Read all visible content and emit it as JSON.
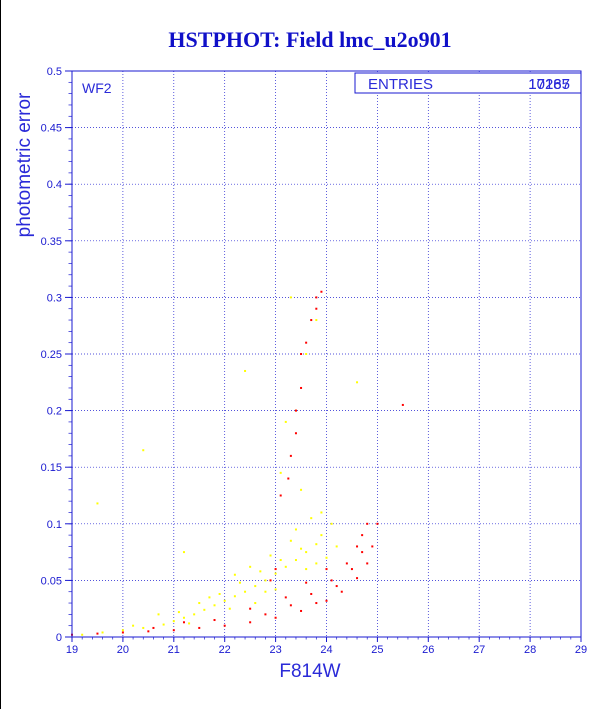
{
  "chart_data": {
    "type": "scatter",
    "title": "HSTPHOT: Field lmc_u2o901",
    "xlabel": "F814W",
    "ylabel": "photometric error",
    "panel_label": "WF2",
    "stats_box": {
      "label": "ENTRIES",
      "value_a": "10185",
      "value_b": "17267"
    },
    "xlim": [
      19,
      29
    ],
    "ylim": [
      0,
      0.5
    ],
    "x_ticks": [
      "19",
      "20",
      "21",
      "22",
      "23",
      "24",
      "25",
      "26",
      "27",
      "28",
      "29"
    ],
    "y_ticks": [
      "0",
      "0.05",
      "0.1",
      "0.15",
      "0.2",
      "0.25",
      "0.3",
      "0.35",
      "0.4",
      "0.45",
      "0.5"
    ],
    "grid": true,
    "series": [
      {
        "color": "#ffff00",
        "points": [
          [
            19.2,
            0.002
          ],
          [
            19.6,
            0.004
          ],
          [
            20.0,
            0.006
          ],
          [
            20.4,
            0.008
          ],
          [
            20.8,
            0.011
          ],
          [
            21.0,
            0.014
          ],
          [
            21.2,
            0.017
          ],
          [
            21.4,
            0.02
          ],
          [
            21.6,
            0.024
          ],
          [
            21.8,
            0.028
          ],
          [
            22.0,
            0.032
          ],
          [
            22.2,
            0.036
          ],
          [
            22.4,
            0.04
          ],
          [
            22.6,
            0.045
          ],
          [
            22.8,
            0.05
          ],
          [
            23.0,
            0.056
          ],
          [
            23.2,
            0.062
          ],
          [
            23.4,
            0.068
          ],
          [
            23.6,
            0.075
          ],
          [
            23.8,
            0.082
          ],
          [
            21.5,
            0.03
          ],
          [
            21.9,
            0.038
          ],
          [
            22.3,
            0.048
          ],
          [
            22.7,
            0.058
          ],
          [
            23.1,
            0.068
          ],
          [
            23.5,
            0.078
          ],
          [
            23.9,
            0.09
          ],
          [
            22.5,
            0.062
          ],
          [
            23.3,
            0.085
          ],
          [
            24.1,
            0.1
          ],
          [
            23.0,
            0.042
          ],
          [
            23.6,
            0.06
          ],
          [
            22.1,
            0.025
          ],
          [
            21.3,
            0.012
          ],
          [
            22.9,
            0.072
          ],
          [
            23.4,
            0.095
          ],
          [
            23.7,
            0.105
          ],
          [
            22.2,
            0.055
          ],
          [
            21.7,
            0.035
          ],
          [
            20.7,
            0.02
          ],
          [
            23.5,
            0.13
          ],
          [
            23.2,
            0.19
          ],
          [
            23.3,
            0.3
          ],
          [
            22.4,
            0.235
          ],
          [
            24.6,
            0.225
          ],
          [
            19.5,
            0.118
          ],
          [
            20.4,
            0.165
          ],
          [
            21.2,
            0.075
          ],
          [
            22.8,
            0.04
          ],
          [
            23.8,
            0.065
          ],
          [
            24.0,
            0.07
          ],
          [
            24.2,
            0.08
          ],
          [
            23.9,
            0.11
          ],
          [
            22.6,
            0.03
          ],
          [
            21.1,
            0.022
          ],
          [
            20.2,
            0.01
          ],
          [
            23.1,
            0.145
          ],
          [
            23.4,
            0.2
          ],
          [
            23.6,
            0.25
          ],
          [
            23.8,
            0.28
          ]
        ]
      },
      {
        "color": "#ff0000",
        "points": [
          [
            19.0,
            0.002
          ],
          [
            19.5,
            0.003
          ],
          [
            20.0,
            0.004
          ],
          [
            20.5,
            0.005
          ],
          [
            21.0,
            0.006
          ],
          [
            21.5,
            0.008
          ],
          [
            22.0,
            0.01
          ],
          [
            22.5,
            0.013
          ],
          [
            23.0,
            0.017
          ],
          [
            23.5,
            0.023
          ],
          [
            24.0,
            0.032
          ],
          [
            24.3,
            0.04
          ],
          [
            24.6,
            0.052
          ],
          [
            24.8,
            0.065
          ],
          [
            24.9,
            0.08
          ],
          [
            25.0,
            0.1
          ],
          [
            23.8,
            0.03
          ],
          [
            24.2,
            0.045
          ],
          [
            24.5,
            0.06
          ],
          [
            24.7,
            0.075
          ],
          [
            22.8,
            0.02
          ],
          [
            23.3,
            0.028
          ],
          [
            23.7,
            0.038
          ],
          [
            24.1,
            0.05
          ],
          [
            24.4,
            0.065
          ],
          [
            23.6,
            0.048
          ],
          [
            24.0,
            0.06
          ],
          [
            22.5,
            0.025
          ],
          [
            23.2,
            0.035
          ],
          [
            21.8,
            0.015
          ],
          [
            23.3,
            0.16
          ],
          [
            23.4,
            0.2
          ],
          [
            23.5,
            0.22
          ],
          [
            23.5,
            0.25
          ],
          [
            23.6,
            0.26
          ],
          [
            23.7,
            0.28
          ],
          [
            23.8,
            0.3
          ],
          [
            23.9,
            0.305
          ],
          [
            23.8,
            0.29
          ],
          [
            23.4,
            0.18
          ],
          [
            23.25,
            0.14
          ],
          [
            23.1,
            0.125
          ],
          [
            24.7,
            0.09
          ],
          [
            25.5,
            0.205
          ],
          [
            23.0,
            0.06
          ],
          [
            22.9,
            0.05
          ],
          [
            21.2,
            0.013
          ],
          [
            20.6,
            0.008
          ],
          [
            24.6,
            0.08
          ],
          [
            24.8,
            0.1
          ]
        ]
      }
    ]
  }
}
